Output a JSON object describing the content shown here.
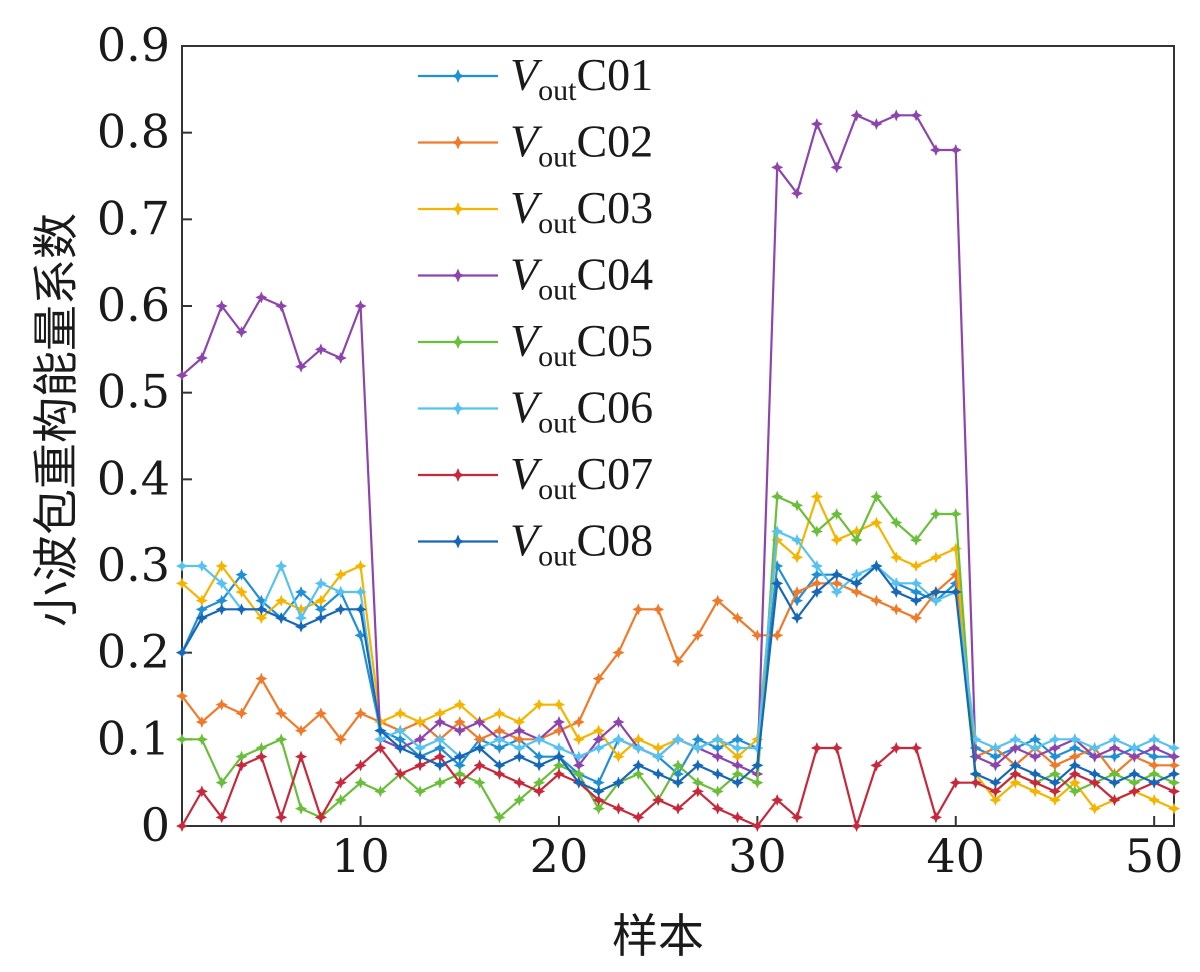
{
  "chart_data": {
    "type": "line",
    "title": "",
    "xlabel": "样本",
    "ylabel": "小波包重构能量系数",
    "xlim": [
      1,
      51
    ],
    "ylim": [
      0,
      0.9
    ],
    "xticks": [
      10,
      20,
      30,
      40,
      50
    ],
    "yticks": [
      0,
      0.1,
      0.2,
      0.3,
      0.4,
      0.5,
      0.6,
      0.7,
      0.8,
      0.9
    ],
    "x": [
      1,
      2,
      3,
      4,
      5,
      6,
      7,
      8,
      9,
      10,
      11,
      12,
      13,
      14,
      15,
      16,
      17,
      18,
      19,
      20,
      21,
      22,
      23,
      24,
      25,
      26,
      27,
      28,
      29,
      30,
      31,
      32,
      33,
      34,
      35,
      36,
      37,
      38,
      39,
      40,
      41,
      42,
      43,
      44,
      45,
      46,
      47,
      48,
      49,
      50,
      51
    ],
    "legend_position": "top-center",
    "series": [
      {
        "name": "VoutC01",
        "label_main": "V",
        "label_sub": "out",
        "label_tail": "C01",
        "color": "#1f8fd6",
        "values": [
          0.2,
          0.25,
          0.26,
          0.29,
          0.26,
          0.24,
          0.27,
          0.25,
          0.27,
          0.22,
          0.11,
          0.1,
          0.08,
          0.09,
          0.07,
          0.1,
          0.09,
          0.1,
          0.08,
          0.08,
          0.06,
          0.05,
          0.1,
          0.09,
          0.08,
          0.06,
          0.1,
          0.09,
          0.1,
          0.09,
          0.3,
          0.26,
          0.29,
          0.29,
          0.28,
          0.3,
          0.28,
          0.27,
          0.26,
          0.28,
          0.09,
          0.08,
          0.09,
          0.1,
          0.08,
          0.09,
          0.08,
          0.08,
          0.09,
          0.08,
          0.08
        ]
      },
      {
        "name": "VoutC02",
        "label_main": "V",
        "label_sub": "out",
        "label_tail": "C02",
        "color": "#f07a2a",
        "values": [
          0.15,
          0.12,
          0.14,
          0.13,
          0.17,
          0.13,
          0.11,
          0.13,
          0.1,
          0.13,
          0.12,
          0.11,
          0.12,
          0.1,
          0.12,
          0.1,
          0.11,
          0.1,
          0.1,
          0.11,
          0.12,
          0.17,
          0.2,
          0.25,
          0.25,
          0.19,
          0.22,
          0.26,
          0.24,
          0.22,
          0.22,
          0.27,
          0.28,
          0.28,
          0.27,
          0.26,
          0.25,
          0.24,
          0.27,
          0.29,
          0.08,
          0.09,
          0.07,
          0.09,
          0.07,
          0.08,
          0.09,
          0.06,
          0.08,
          0.07,
          0.07
        ]
      },
      {
        "name": "VoutC03",
        "label_main": "V",
        "label_sub": "out",
        "label_tail": "C03",
        "color": "#f5b400",
        "values": [
          0.28,
          0.26,
          0.3,
          0.27,
          0.24,
          0.26,
          0.25,
          0.26,
          0.29,
          0.3,
          0.12,
          0.13,
          0.12,
          0.13,
          0.14,
          0.12,
          0.13,
          0.12,
          0.14,
          0.14,
          0.1,
          0.11,
          0.08,
          0.1,
          0.09,
          0.1,
          0.09,
          0.1,
          0.08,
          0.1,
          0.33,
          0.31,
          0.38,
          0.33,
          0.34,
          0.35,
          0.31,
          0.3,
          0.31,
          0.32,
          0.06,
          0.03,
          0.05,
          0.04,
          0.03,
          0.05,
          0.02,
          0.03,
          0.04,
          0.03,
          0.02
        ]
      },
      {
        "name": "VoutC04",
        "label_main": "V",
        "label_sub": "out",
        "label_tail": "C04",
        "color": "#8e44ad",
        "values": [
          0.52,
          0.54,
          0.6,
          0.57,
          0.61,
          0.6,
          0.53,
          0.55,
          0.54,
          0.6,
          0.1,
          0.09,
          0.1,
          0.12,
          0.11,
          0.12,
          0.1,
          0.11,
          0.1,
          0.12,
          0.07,
          0.1,
          0.12,
          0.09,
          0.08,
          0.1,
          0.09,
          0.08,
          0.07,
          0.06,
          0.76,
          0.73,
          0.81,
          0.76,
          0.82,
          0.81,
          0.82,
          0.82,
          0.78,
          0.78,
          0.08,
          0.07,
          0.09,
          0.08,
          0.09,
          0.1,
          0.08,
          0.09,
          0.08,
          0.09,
          0.08
        ]
      },
      {
        "name": "VoutC05",
        "label_main": "V",
        "label_sub": "out",
        "label_tail": "C05",
        "color": "#6abf3a",
        "values": [
          0.1,
          0.1,
          0.05,
          0.08,
          0.09,
          0.1,
          0.02,
          0.01,
          0.03,
          0.05,
          0.04,
          0.06,
          0.04,
          0.05,
          0.06,
          0.05,
          0.01,
          0.03,
          0.05,
          0.07,
          0.06,
          0.02,
          0.05,
          0.06,
          0.03,
          0.07,
          0.05,
          0.04,
          0.06,
          0.05,
          0.38,
          0.37,
          0.34,
          0.36,
          0.33,
          0.38,
          0.35,
          0.33,
          0.36,
          0.36,
          0.05,
          0.04,
          0.06,
          0.05,
          0.06,
          0.04,
          0.05,
          0.06,
          0.05,
          0.06,
          0.05
        ]
      },
      {
        "name": "VoutC06",
        "label_main": "V",
        "label_sub": "out",
        "label_tail": "C06",
        "color": "#56c2ef",
        "values": [
          0.3,
          0.3,
          0.28,
          0.25,
          0.25,
          0.3,
          0.24,
          0.28,
          0.27,
          0.27,
          0.1,
          0.11,
          0.09,
          0.1,
          0.08,
          0.09,
          0.1,
          0.09,
          0.1,
          0.09,
          0.08,
          0.09,
          0.1,
          0.09,
          0.08,
          0.1,
          0.09,
          0.1,
          0.09,
          0.09,
          0.34,
          0.33,
          0.3,
          0.27,
          0.29,
          0.3,
          0.28,
          0.28,
          0.26,
          0.27,
          0.1,
          0.09,
          0.1,
          0.09,
          0.1,
          0.1,
          0.09,
          0.1,
          0.09,
          0.1,
          0.09
        ]
      },
      {
        "name": "VoutC07",
        "label_main": "V",
        "label_sub": "out",
        "label_tail": "C07",
        "color": "#c8283c",
        "values": [
          0.0,
          0.04,
          0.01,
          0.07,
          0.08,
          0.01,
          0.08,
          0.01,
          0.05,
          0.07,
          0.09,
          0.06,
          0.07,
          0.08,
          0.05,
          0.07,
          0.06,
          0.05,
          0.04,
          0.06,
          0.05,
          0.03,
          0.02,
          0.01,
          0.03,
          0.02,
          0.04,
          0.02,
          0.01,
          0.0,
          0.03,
          0.01,
          0.09,
          0.09,
          0.0,
          0.07,
          0.09,
          0.09,
          0.01,
          0.05,
          0.05,
          0.04,
          0.06,
          0.05,
          0.04,
          0.06,
          0.05,
          0.03,
          0.04,
          0.05,
          0.04
        ]
      },
      {
        "name": "VoutC08",
        "label_main": "V",
        "label_sub": "out",
        "label_tail": "C08",
        "color": "#1667b8",
        "values": [
          0.2,
          0.24,
          0.25,
          0.25,
          0.25,
          0.24,
          0.23,
          0.24,
          0.25,
          0.25,
          0.11,
          0.09,
          0.08,
          0.07,
          0.08,
          0.09,
          0.07,
          0.08,
          0.07,
          0.08,
          0.05,
          0.04,
          0.05,
          0.07,
          0.06,
          0.05,
          0.07,
          0.06,
          0.05,
          0.07,
          0.28,
          0.24,
          0.27,
          0.29,
          0.28,
          0.3,
          0.27,
          0.26,
          0.27,
          0.27,
          0.06,
          0.05,
          0.07,
          0.06,
          0.05,
          0.07,
          0.06,
          0.05,
          0.06,
          0.05,
          0.06
        ]
      }
    ]
  }
}
